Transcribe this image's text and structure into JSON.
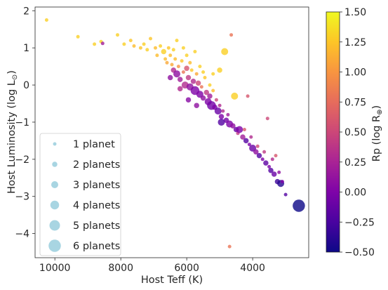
{
  "chart_data": {
    "type": "scatter",
    "xlabel": "Host Teff (K)",
    "ylabel": "Host Luminosity (log L",
    "ylabel_symbol": "⊙",
    "ylabel_close": ")",
    "xlim": [
      10600,
      2300
    ],
    "ylim": [
      -4.65,
      2.1
    ],
    "x_ticks": [
      10000,
      8000,
      6000,
      4000
    ],
    "y_ticks": [
      2,
      1,
      0,
      -1,
      -2,
      -3,
      -4
    ],
    "grid": false,
    "colorbar": {
      "label": "Rp (log R",
      "label_symbol": "⊕",
      "label_close": ")",
      "range": [
        -0.5,
        1.5
      ],
      "ticks": [
        1.5,
        1.25,
        1.0,
        0.75,
        0.5,
        0.25,
        0.0,
        -0.25,
        -0.5
      ],
      "tick_labels": [
        "1.50",
        "1.25",
        "1.00",
        "0.75",
        "0.50",
        "0.25",
        "0.00",
        "−0.25",
        "−0.50"
      ],
      "colormap": "plasma"
    },
    "legend": {
      "placement": "lower-left",
      "marker_color": "#a8d5e2",
      "entries": [
        {
          "label": "1 planet",
          "n": 1
        },
        {
          "label": "2 planets",
          "n": 2
        },
        {
          "label": "3 planets",
          "n": 3
        },
        {
          "label": "4 planets",
          "n": 4
        },
        {
          "label": "5 planets",
          "n": 5
        },
        {
          "label": "6 planets",
          "n": 6
        }
      ]
    },
    "points": [
      [
        10250,
        1.75,
        1.3,
        1
      ],
      [
        9300,
        1.3,
        1.3,
        1
      ],
      [
        8800,
        1.1,
        1.3,
        1
      ],
      [
        8600,
        1.17,
        1.35,
        1
      ],
      [
        8550,
        1.12,
        0.2,
        1
      ],
      [
        8100,
        1.35,
        1.3,
        1
      ],
      [
        7900,
        1.1,
        1.3,
        1
      ],
      [
        7700,
        1.2,
        1.25,
        1
      ],
      [
        7600,
        1.05,
        1.2,
        1
      ],
      [
        7400,
        1.0,
        1.25,
        1
      ],
      [
        7300,
        1.1,
        1.3,
        1
      ],
      [
        7200,
        0.95,
        1.3,
        1
      ],
      [
        7100,
        1.25,
        1.25,
        1
      ],
      [
        6950,
        1.0,
        1.2,
        1
      ],
      [
        6900,
        0.8,
        1.2,
        1
      ],
      [
        6800,
        1.05,
        1.3,
        1
      ],
      [
        6700,
        0.9,
        1.3,
        2
      ],
      [
        6650,
        0.7,
        1.2,
        1
      ],
      [
        6600,
        0.6,
        1.1,
        1
      ],
      [
        6550,
        1.0,
        1.25,
        1
      ],
      [
        6500,
        0.8,
        1.2,
        1
      ],
      [
        6450,
        0.55,
        1.1,
        1
      ],
      [
        6400,
        0.4,
        0.3,
        2
      ],
      [
        6350,
        0.7,
        1.2,
        1
      ],
      [
        6300,
        0.3,
        0.1,
        3
      ],
      [
        6300,
        1.2,
        1.3,
        1
      ],
      [
        6250,
        0.5,
        1.0,
        1
      ],
      [
        6200,
        0.15,
        0.2,
        2
      ],
      [
        6150,
        0.65,
        1.25,
        1
      ],
      [
        6100,
        0.35,
        0.8,
        1
      ],
      [
        6050,
        0.0,
        0.3,
        3
      ],
      [
        6000,
        0.8,
        1.3,
        1
      ],
      [
        6000,
        0.45,
        0.6,
        2
      ],
      [
        5950,
        0.2,
        0.4,
        2
      ],
      [
        5900,
        -0.05,
        0.1,
        3
      ],
      [
        5900,
        0.6,
        1.2,
        1
      ],
      [
        5850,
        0.4,
        1.25,
        1
      ],
      [
        5800,
        0.1,
        0.3,
        2
      ],
      [
        5750,
        -0.15,
        0.0,
        4
      ],
      [
        5750,
        0.9,
        1.3,
        1
      ],
      [
        5700,
        0.3,
        1.1,
        1
      ],
      [
        5650,
        0.05,
        0.5,
        2
      ],
      [
        5600,
        -0.25,
        0.0,
        3
      ],
      [
        5600,
        0.5,
        1.3,
        1
      ],
      [
        5550,
        -0.05,
        0.8,
        1
      ],
      [
        5500,
        -0.35,
        0.1,
        2
      ],
      [
        5450,
        0.2,
        1.25,
        1
      ],
      [
        5400,
        -0.2,
        0.4,
        2
      ],
      [
        5350,
        -0.45,
        0.0,
        3
      ],
      [
        5300,
        0.0,
        1.3,
        1
      ],
      [
        5300,
        -0.3,
        0.2,
        2
      ],
      [
        5250,
        -0.55,
        -0.05,
        4
      ],
      [
        5200,
        -0.15,
        1.2,
        1
      ],
      [
        5150,
        -0.6,
        0.0,
        2
      ],
      [
        5100,
        -0.4,
        0.5,
        1
      ],
      [
        5050,
        -0.7,
        -0.1,
        3
      ],
      [
        5000,
        0.4,
        1.3,
        2
      ],
      [
        5000,
        -0.55,
        0.3,
        1
      ],
      [
        4950,
        -0.85,
        0.0,
        2
      ],
      [
        4900,
        -0.7,
        0.3,
        1
      ],
      [
        4850,
        0.9,
        1.3,
        3
      ],
      [
        4800,
        -0.95,
        -0.05,
        2
      ],
      [
        4750,
        -0.8,
        0.2,
        1
      ],
      [
        4700,
        -1.05,
        0.0,
        3
      ],
      [
        4650,
        1.35,
        0.8,
        1
      ],
      [
        4600,
        -1.1,
        0.1,
        2
      ],
      [
        4550,
        -0.3,
        1.3,
        3
      ],
      [
        4500,
        -1.2,
        -0.1,
        2
      ],
      [
        4450,
        -1.3,
        0.4,
        1
      ],
      [
        4400,
        -1.2,
        0.0,
        3
      ],
      [
        4300,
        -1.4,
        0.2,
        2
      ],
      [
        4250,
        -1.2,
        0.6,
        1
      ],
      [
        4200,
        -1.5,
        -0.2,
        2
      ],
      [
        4150,
        -0.3,
        0.6,
        1
      ],
      [
        4100,
        -1.6,
        0.0,
        1
      ],
      [
        4050,
        -1.4,
        0.3,
        1
      ],
      [
        4000,
        -1.7,
        -0.1,
        3
      ],
      [
        3900,
        -1.8,
        0.1,
        2
      ],
      [
        3850,
        -1.65,
        0.5,
        1
      ],
      [
        3800,
        -1.9,
        -0.2,
        2
      ],
      [
        3700,
        -2.0,
        0.0,
        1
      ],
      [
        3650,
        -1.8,
        0.4,
        1
      ],
      [
        3600,
        -2.1,
        -0.15,
        2
      ],
      [
        3550,
        -0.9,
        0.5,
        1
      ],
      [
        3500,
        -2.2,
        0.0,
        1
      ],
      [
        3450,
        -2.3,
        -0.2,
        2
      ],
      [
        3400,
        -2.0,
        0.3,
        1
      ],
      [
        3350,
        -2.4,
        -0.1,
        2
      ],
      [
        3300,
        -1.9,
        0.6,
        1
      ],
      [
        3250,
        -2.6,
        -0.3,
        2
      ],
      [
        3200,
        -2.35,
        0.1,
        1
      ],
      [
        3150,
        -2.65,
        -0.4,
        3
      ],
      [
        3100,
        -2.6,
        0.0,
        1
      ],
      [
        3000,
        -2.95,
        -0.2,
        1
      ],
      [
        2600,
        -3.25,
        -0.5,
        6
      ],
      [
        4700,
        -4.35,
        0.8,
        1
      ],
      [
        6500,
        0.2,
        0.1,
        2
      ],
      [
        6200,
        -0.1,
        0.3,
        2
      ],
      [
        5950,
        -0.4,
        0.05,
        2
      ],
      [
        5700,
        -0.55,
        0.1,
        2
      ],
      [
        6100,
        1.0,
        1.3,
        1
      ],
      [
        6400,
        0.95,
        1.3,
        1
      ],
      [
        5500,
        0.35,
        1.3,
        1
      ],
      [
        5200,
        0.3,
        1.3,
        1
      ],
      [
        4950,
        -1.0,
        -0.2,
        3
      ]
    ]
  }
}
